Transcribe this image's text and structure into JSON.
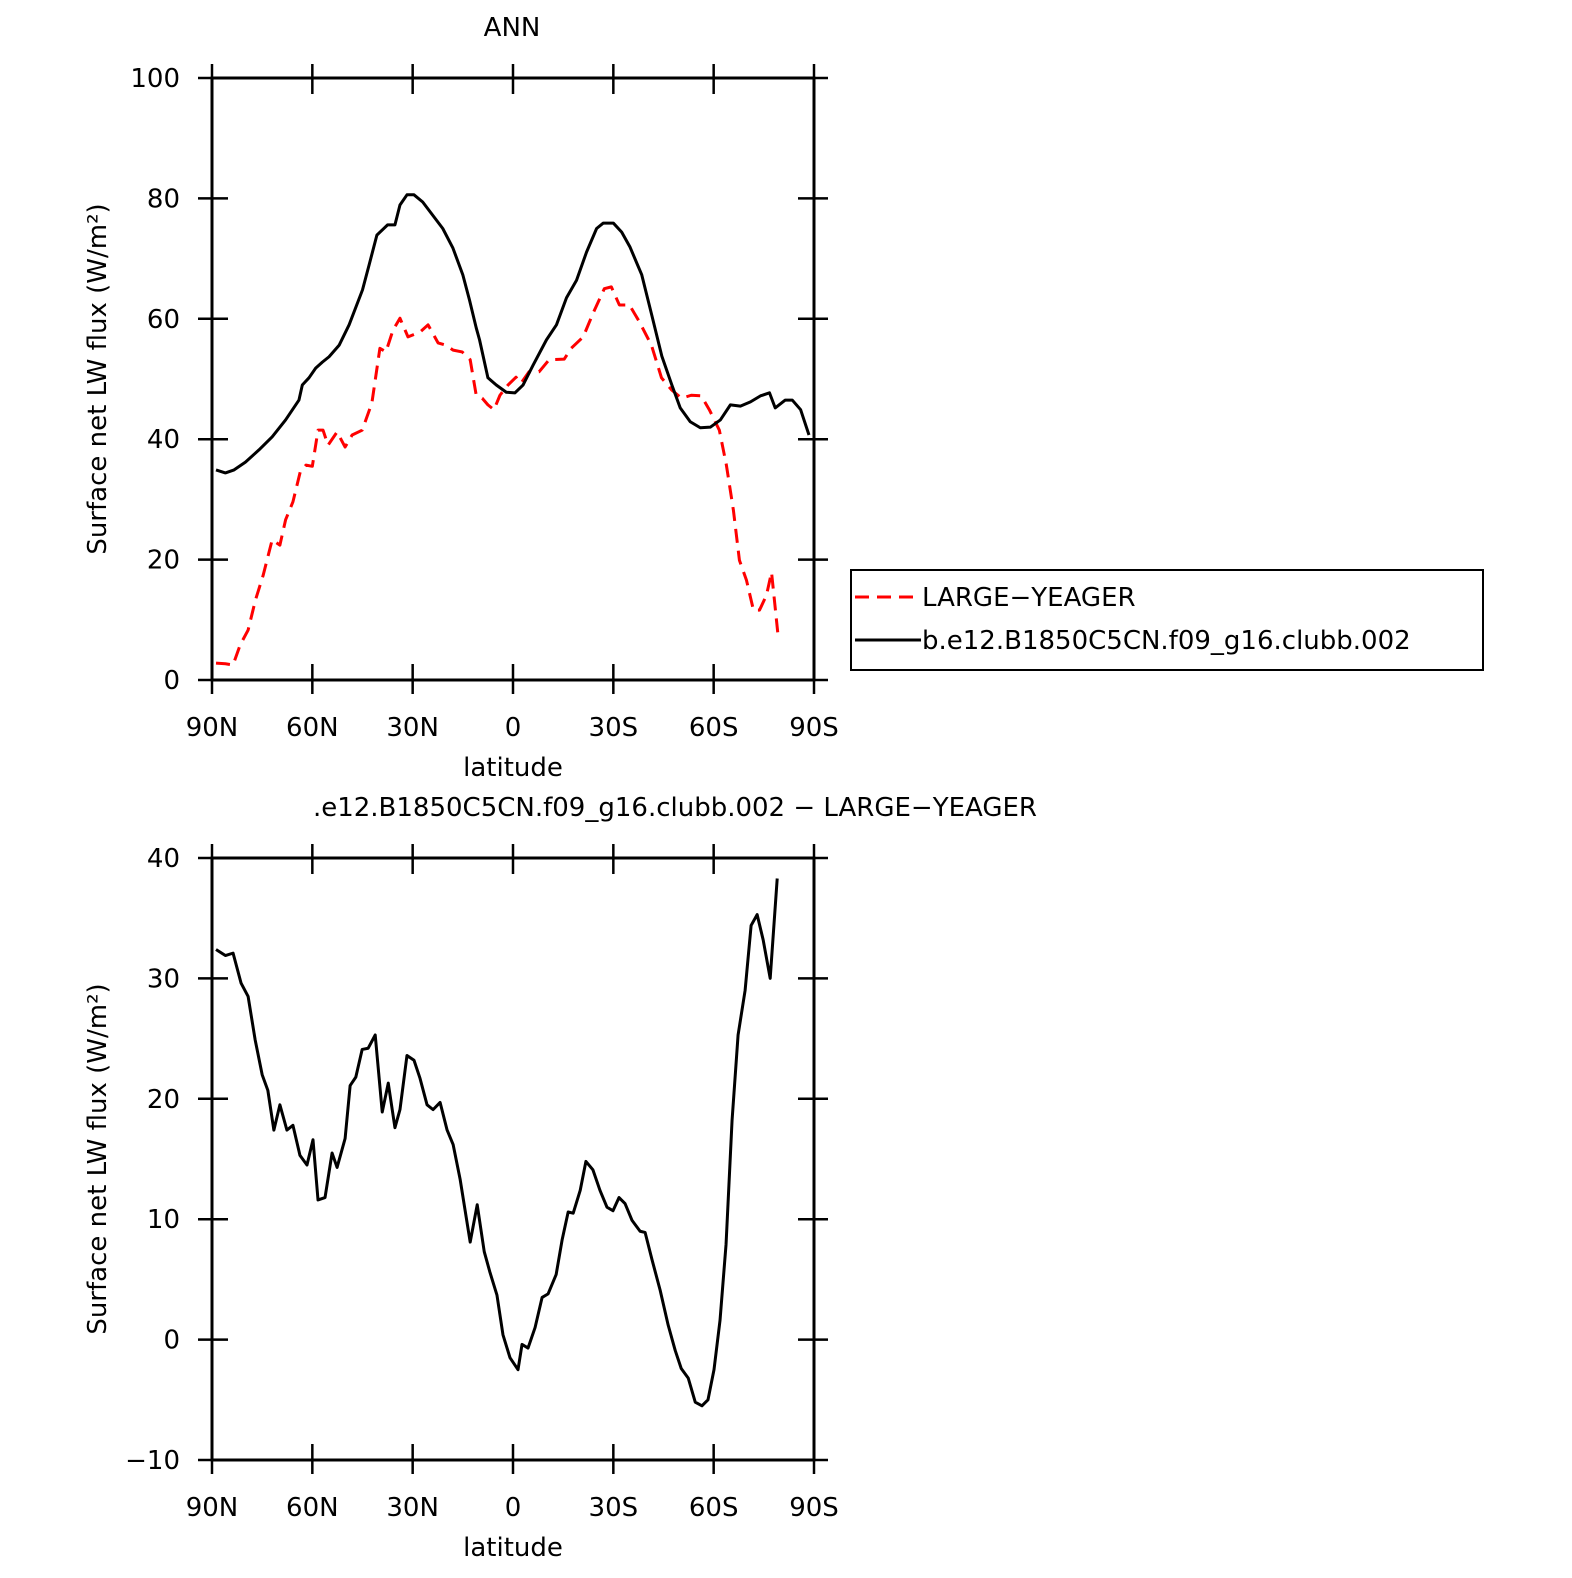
{
  "chart_data": [
    {
      "type": "line",
      "title": "ANN",
      "x_label": "latitude",
      "y_label": "Surface net LW flux (W/m²)",
      "xlim": [
        90,
        -90
      ],
      "xticks": [
        {
          "value": 90,
          "label": "90N"
        },
        {
          "value": 60,
          "label": "60N"
        },
        {
          "value": 30,
          "label": "30N"
        },
        0,
        {
          "value": -30,
          "label": "30S"
        },
        {
          "value": -60,
          "label": "60S"
        },
        {
          "value": -90,
          "label": "90S"
        }
      ],
      "ylim": [
        0,
        100
      ],
      "yticks": [
        0,
        20,
        40,
        60,
        80,
        100
      ],
      "legend": "right",
      "series": [
        {
          "name": "LARGE−YEAGER",
          "color": "#ff0000",
          "dashed": true,
          "x": [
            88.8,
            86,
            83.7,
            81.6,
            79.2,
            77,
            74.7,
            72,
            69.7,
            68,
            65.8,
            63.6,
            61.9,
            60,
            58.3,
            56.8,
            55.3,
            52.6,
            50.2,
            48.1,
            45.1,
            42.2,
            39.8,
            38,
            35.9,
            33.8,
            31.4,
            27.8,
            25.4,
            22.4,
            20,
            17.9,
            15.2,
            12.8,
            11,
            9.2,
            7.5,
            5.7,
            3.9,
            1.5,
            -0.9,
            -2.4,
            -4.8,
            -7.8,
            -10.8,
            -15.3,
            -17.4,
            -21,
            -24,
            -27.3,
            -29.4,
            -31.8,
            -34.8,
            -37.8,
            -41.4,
            -44.4,
            -47.4,
            -50.4,
            -53.3,
            -56.3,
            -58.7,
            -61.7,
            -63.8,
            -65.9,
            -67.7,
            -69.8,
            -71.9,
            -73.7,
            -75.8,
            -77.3,
            -79.4
          ],
          "values": [
            2.8,
            2.7,
            2.5,
            5.8,
            8.3,
            13.3,
            17.4,
            23.3,
            22.4,
            26.6,
            29.6,
            34.6,
            35.7,
            35.5,
            41.5,
            41.5,
            39,
            41.2,
            38.7,
            40.7,
            41.5,
            46,
            55.1,
            54.5,
            58.1,
            60.1,
            57,
            57.8,
            59,
            56,
            55.6,
            54.8,
            54.5,
            53.2,
            47.3,
            46.8,
            45.7,
            44.9,
            47.3,
            49,
            50.3,
            49.3,
            51.2,
            51.2,
            53.2,
            53.3,
            55.1,
            57,
            61,
            65,
            65.3,
            62.3,
            62.3,
            59.5,
            55.6,
            50.2,
            48.2,
            46.8,
            47.3,
            47.2,
            44.9,
            41.5,
            35.7,
            28.2,
            19.9,
            16.6,
            11.6,
            11.6,
            14.1,
            17.9,
            6.6
          ]
        },
        {
          "name": "b.e12.B1850C5CN.f09_g16.clubb.002",
          "color": "#000000",
          "dashed": false,
          "x": [
            88.8,
            86,
            83.4,
            80,
            76,
            72,
            68,
            64,
            63,
            61,
            59,
            57,
            55,
            52,
            49,
            45,
            43,
            40.7,
            37.5,
            35.3,
            33.8,
            31.7,
            29.6,
            27,
            24,
            21,
            18,
            15,
            13,
            11,
            10,
            7.5,
            5,
            2,
            -0.6,
            -3,
            -6,
            -10,
            -13,
            -16,
            -19,
            -22,
            -25,
            -27,
            -30,
            -32.5,
            -35,
            -38.5,
            -41.5,
            -44.5,
            -47.5,
            -50,
            -53,
            -56,
            -59,
            -62,
            -65,
            -68,
            -71,
            -74,
            -76.7,
            -78.4,
            -81.4,
            -83.5,
            -86,
            -88.5
          ],
          "values": [
            34.9,
            34.4,
            34.9,
            36.2,
            38.2,
            40.4,
            43.2,
            46.5,
            49,
            50.2,
            51.8,
            52.8,
            53.7,
            55.6,
            59,
            64.8,
            69,
            73.9,
            75.6,
            75.6,
            78.9,
            80.6,
            80.6,
            79.4,
            77.2,
            75,
            71.8,
            67.3,
            63.1,
            58.5,
            56.5,
            50.2,
            49,
            47.8,
            47.7,
            49,
            52.3,
            56.5,
            59,
            63.5,
            66.4,
            71.1,
            75,
            75.9,
            75.9,
            74.4,
            71.9,
            67.3,
            60.6,
            53.8,
            49,
            45.2,
            42.9,
            41.9,
            42,
            43.2,
            45.7,
            45.5,
            46.2,
            47.2,
            47.7,
            45.2,
            46.5,
            46.5,
            44.9,
            40.7
          ]
        }
      ]
    },
    {
      "type": "line",
      "title": ".e12.B1850C5CN.f09_g16.clubb.002 − LARGE−YEAGER",
      "x_label": "latitude",
      "y_label": "Surface net LW flux (W/m²)",
      "xlim": [
        90,
        -90
      ],
      "xticks": [
        {
          "value": 90,
          "label": "90N"
        },
        {
          "value": 60,
          "label": "60N"
        },
        {
          "value": 30,
          "label": "30N"
        },
        0,
        {
          "value": -30,
          "label": "30S"
        },
        {
          "value": -60,
          "label": "60S"
        },
        {
          "value": -90,
          "label": "90S"
        }
      ],
      "ylim": [
        -10,
        40
      ],
      "yticks": [
        {
          "value": -10,
          "label": "−10"
        },
        0,
        10,
        20,
        30,
        40
      ],
      "series": [
        {
          "color": "#000000",
          "dashed": false,
          "x": [
            88.8,
            86,
            83.7,
            81.3,
            79.2,
            77.1,
            75,
            73.3,
            71.5,
            69.7,
            67.6,
            65.8,
            63.7,
            61.6,
            59.8,
            58.3,
            56.2,
            54.1,
            52.6,
            50.2,
            48.7,
            47,
            45.1,
            43.3,
            41.2,
            39.1,
            37.3,
            35.3,
            33.8,
            31.7,
            29.6,
            27.8,
            25.7,
            23.9,
            21.8,
            19.7,
            17.9,
            15.8,
            12.8,
            10.7,
            8.6,
            6.9,
            4.8,
            3,
            0.9,
            -1.5,
            -2.7,
            -4.5,
            -6.6,
            -8.7,
            -10.5,
            -12.9,
            -14.7,
            -16.5,
            -18,
            -20.1,
            -21.8,
            -23.9,
            -26,
            -28.1,
            -29.9,
            -31.7,
            -33.5,
            -35.6,
            -38,
            -39.5,
            -41.6,
            -44,
            -46.4,
            -48.5,
            -50.3,
            -52.4,
            -54.5,
            -56.5,
            -58.3,
            -60.1,
            -61.9,
            -63.7,
            -65.5,
            -67.3,
            -69.4,
            -71.2,
            -73,
            -74.8,
            -76.9,
            -79
          ],
          "values": [
            32.4,
            31.9,
            32.1,
            29.6,
            28.5,
            24.9,
            22,
            20.7,
            17.4,
            19.5,
            17.4,
            17.8,
            15.3,
            14.5,
            16.6,
            11.6,
            11.8,
            15.5,
            14.3,
            16.7,
            21.1,
            21.8,
            24.1,
            24.2,
            25.3,
            18.9,
            21.3,
            17.6,
            19.1,
            23.6,
            23.2,
            21.7,
            19.5,
            19.1,
            19.7,
            17.4,
            16.2,
            13.3,
            8.1,
            11.2,
            7.3,
            5.6,
            3.7,
            0.4,
            -1.5,
            -2.5,
            -0.4,
            -0.7,
            1,
            3.5,
            3.8,
            5.4,
            8.3,
            10.6,
            10.5,
            12.4,
            14.8,
            14.1,
            12.4,
            11,
            10.7,
            11.8,
            11.3,
            9.9,
            9,
            8.9,
            6.6,
            4.1,
            1.2,
            -0.9,
            -2.4,
            -3.2,
            -5.2,
            -5.5,
            -5,
            -2.5,
            1.6,
            7.9,
            18.2,
            25.3,
            29,
            34.4,
            35.3,
            33.2,
            30,
            38.3
          ]
        }
      ]
    }
  ]
}
